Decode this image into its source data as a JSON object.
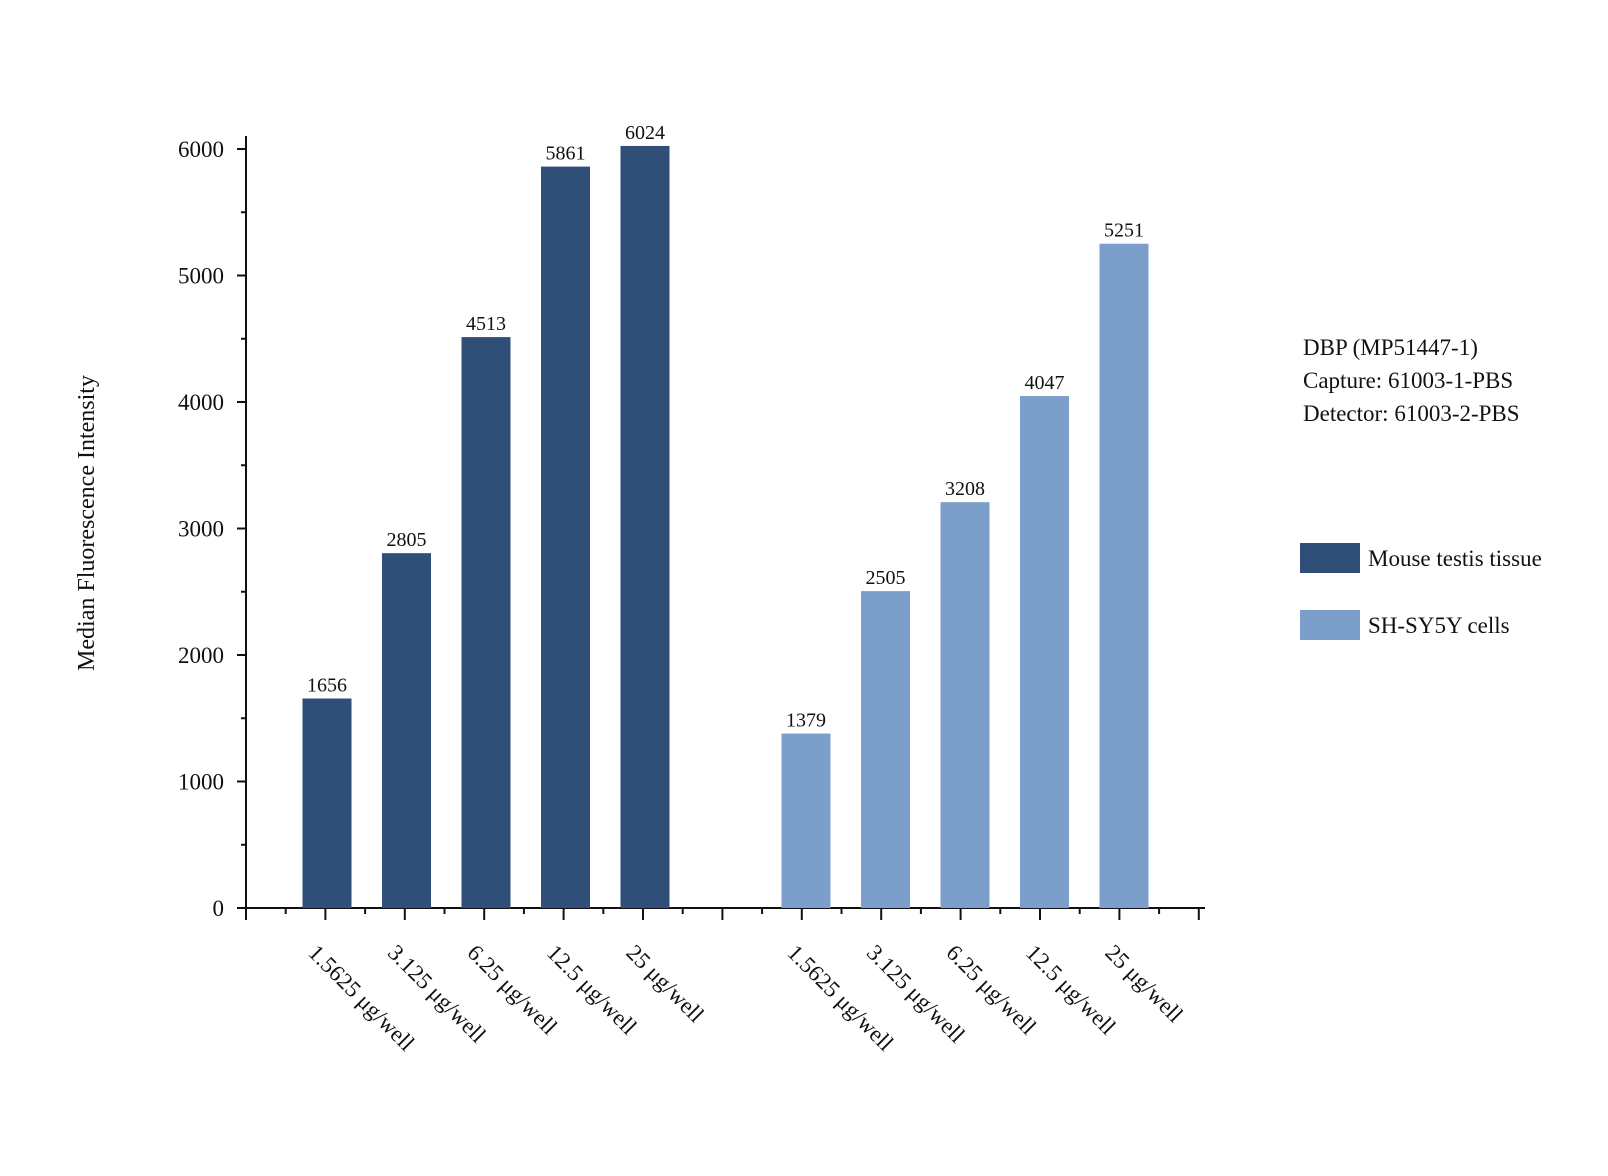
{
  "chart_data": {
    "type": "bar",
    "title": "",
    "xlabel": "",
    "ylabel": "Median Fluorescence Intensity",
    "ylim": [
      0,
      6000
    ],
    "yticks": [
      0,
      1000,
      2000,
      3000,
      4000,
      5000,
      6000
    ],
    "grid": false,
    "legend_position": "right",
    "groups": [
      {
        "name": "Mouse testis tissue",
        "color": "#2f4e78",
        "categories": [
          "1.5625 μg/well",
          "3.125 μg/well",
          "6.25 μg/well",
          "12.5 μg/well",
          "25 μg/well"
        ],
        "values": [
          1656,
          2805,
          4513,
          5861,
          6024
        ]
      },
      {
        "name": "SH-SY5Y cells",
        "color": "#7b9ecb",
        "categories": [
          "1.5625 μg/well",
          "3.125 μg/well",
          "6.25 μg/well",
          "12.5 μg/well",
          "25 μg/well"
        ],
        "values": [
          1379,
          2505,
          3208,
          4047,
          5251
        ]
      }
    ],
    "annotation": [
      "DBP (MP51447-1)",
      "Capture: 61003-1-PBS",
      "Detector: 61003-2-PBS"
    ]
  }
}
